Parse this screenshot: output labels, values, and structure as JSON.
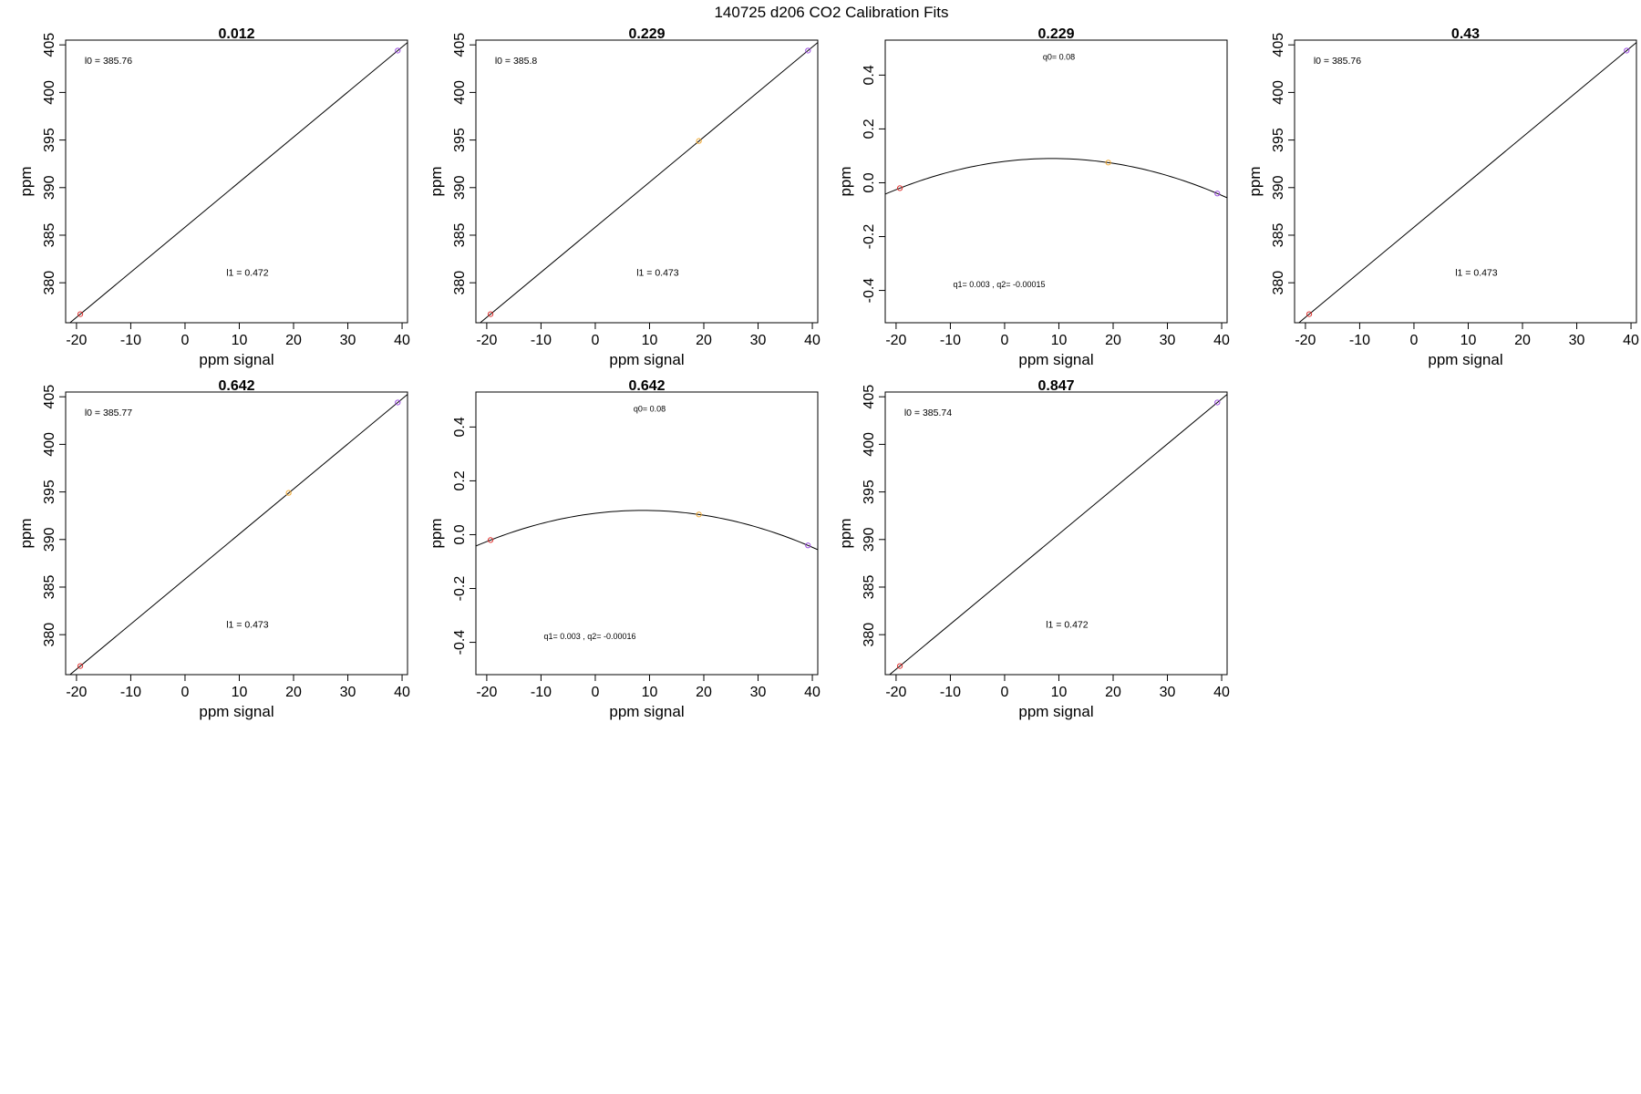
{
  "page": {
    "title": "140725   d206   CO2 Calibration Fits"
  },
  "colors": {
    "low": "#e0312f",
    "mid": "#f0a830",
    "high": "#9a4ae0",
    "line": "#000000"
  },
  "chart_data": [
    {
      "type": "scatter",
      "fit": "linear",
      "title": "0.012",
      "xlabel": "ppm signal",
      "ylabel": "ppm",
      "xlim": [
        -22,
        41
      ],
      "ylim": [
        375.8,
        405.5
      ],
      "xticks": [
        "-20",
        "-10",
        "0",
        "10",
        "20",
        "30",
        "40"
      ],
      "yticks": [
        "380",
        "385",
        "390",
        "395",
        "400",
        "405"
      ],
      "points": [
        {
          "x": -19.3,
          "y": 376.7,
          "color": "low"
        },
        {
          "x": 39.2,
          "y": 404.4,
          "color": "high"
        }
      ],
      "annotations": [
        {
          "text": "l0 =  385.76",
          "x": -18.5,
          "y": 403.4,
          "size": 10.5
        },
        {
          "text": "l1 =  0.472",
          "x": 11.5,
          "y": 381.1,
          "size": 10.5
        }
      ]
    },
    {
      "type": "scatter",
      "fit": "linear",
      "title": "0.229",
      "xlabel": "ppm signal",
      "ylabel": "ppm",
      "xlim": [
        -22,
        41
      ],
      "ylim": [
        375.8,
        405.5
      ],
      "xticks": [
        "-20",
        "-10",
        "0",
        "10",
        "20",
        "30",
        "40"
      ],
      "yticks": [
        "380",
        "385",
        "390",
        "395",
        "400",
        "405"
      ],
      "points": [
        {
          "x": -19.3,
          "y": 376.7,
          "color": "low"
        },
        {
          "x": 19.1,
          "y": 394.9,
          "color": "mid"
        },
        {
          "x": 39.2,
          "y": 404.4,
          "color": "high"
        }
      ],
      "annotations": [
        {
          "text": "l0 =  385.8",
          "x": -18.5,
          "y": 403.4,
          "size": 10.5
        },
        {
          "text": "l1 =  0.473",
          "x": 11.5,
          "y": 381.1,
          "size": 10.5
        }
      ]
    },
    {
      "type": "scatter",
      "fit": "quadratic",
      "title": "0.229",
      "xlabel": "ppm signal",
      "ylabel": "ppm",
      "xlim": [
        -22,
        41
      ],
      "ylim": [
        -0.52,
        0.53
      ],
      "xticks": [
        "-20",
        "-10",
        "0",
        "10",
        "20",
        "30",
        "40"
      ],
      "yticks": [
        "-0.4",
        "-0.2",
        "0.0",
        "0.2",
        "0.4"
      ],
      "points": [
        {
          "x": -19.3,
          "y": -0.02,
          "color": "low"
        },
        {
          "x": 19.1,
          "y": 0.075,
          "color": "mid"
        },
        {
          "x": 39.2,
          "y": -0.04,
          "color": "high"
        }
      ],
      "annotations": [
        {
          "text": "q0= 0.08",
          "x": 10,
          "y": 0.47,
          "size": 9
        },
        {
          "text": "q1= 0.003 , q2= -0.00015",
          "x": -1,
          "y": -0.375,
          "size": 9
        }
      ]
    },
    {
      "type": "scatter",
      "fit": "linear",
      "title": "0.43",
      "xlabel": "ppm signal",
      "ylabel": "ppm",
      "xlim": [
        -22,
        41
      ],
      "ylim": [
        375.8,
        405.5
      ],
      "xticks": [
        "-20",
        "-10",
        "0",
        "10",
        "20",
        "30",
        "40"
      ],
      "yticks": [
        "380",
        "385",
        "390",
        "395",
        "400",
        "405"
      ],
      "points": [
        {
          "x": -19.3,
          "y": 376.7,
          "color": "low"
        },
        {
          "x": 39.2,
          "y": 404.4,
          "color": "high"
        }
      ],
      "annotations": [
        {
          "text": "l0 =  385.76",
          "x": -18.5,
          "y": 403.4,
          "size": 10.5
        },
        {
          "text": "l1 =  0.473",
          "x": 11.5,
          "y": 381.1,
          "size": 10.5
        }
      ]
    },
    {
      "type": "scatter",
      "fit": "linear",
      "title": "0.642",
      "xlabel": "ppm signal",
      "ylabel": "ppm",
      "xlim": [
        -22,
        41
      ],
      "ylim": [
        375.8,
        405.5
      ],
      "xticks": [
        "-20",
        "-10",
        "0",
        "10",
        "20",
        "30",
        "40"
      ],
      "yticks": [
        "380",
        "385",
        "390",
        "395",
        "400",
        "405"
      ],
      "points": [
        {
          "x": -19.3,
          "y": 376.7,
          "color": "low"
        },
        {
          "x": 19.1,
          "y": 394.9,
          "color": "mid"
        },
        {
          "x": 39.2,
          "y": 404.4,
          "color": "high"
        }
      ],
      "annotations": [
        {
          "text": "l0 =  385.77",
          "x": -18.5,
          "y": 403.4,
          "size": 10.5
        },
        {
          "text": "l1 =  0.473",
          "x": 11.5,
          "y": 381.1,
          "size": 10.5
        }
      ]
    },
    {
      "type": "scatter",
      "fit": "quadratic",
      "title": "0.642",
      "xlabel": "ppm signal",
      "ylabel": "ppm",
      "xlim": [
        -22,
        41
      ],
      "ylim": [
        -0.52,
        0.53
      ],
      "xticks": [
        "-20",
        "-10",
        "0",
        "10",
        "20",
        "30",
        "40"
      ],
      "yticks": [
        "-0.4",
        "-0.2",
        "0.0",
        "0.2",
        "0.4"
      ],
      "points": [
        {
          "x": -19.3,
          "y": -0.02,
          "color": "low"
        },
        {
          "x": 19.1,
          "y": 0.075,
          "color": "mid"
        },
        {
          "x": 39.2,
          "y": -0.04,
          "color": "high"
        }
      ],
      "annotations": [
        {
          "text": "q0= 0.08",
          "x": 10,
          "y": 0.47,
          "size": 9
        },
        {
          "text": "q1= 0.003 , q2= -0.00016",
          "x": -1,
          "y": -0.375,
          "size": 9
        }
      ]
    },
    {
      "type": "scatter",
      "fit": "linear",
      "title": "0.847",
      "xlabel": "ppm signal",
      "ylabel": "ppm",
      "xlim": [
        -22,
        41
      ],
      "ylim": [
        375.8,
        405.5
      ],
      "xticks": [
        "-20",
        "-10",
        "0",
        "10",
        "20",
        "30",
        "40"
      ],
      "yticks": [
        "380",
        "385",
        "390",
        "395",
        "400",
        "405"
      ],
      "points": [
        {
          "x": -19.3,
          "y": 376.7,
          "color": "low"
        },
        {
          "x": 39.2,
          "y": 404.4,
          "color": "high"
        }
      ],
      "annotations": [
        {
          "text": "l0 =  385.74",
          "x": -18.5,
          "y": 403.4,
          "size": 10.5
        },
        {
          "text": "l1 =  0.472",
          "x": 11.5,
          "y": 381.1,
          "size": 10.5
        }
      ]
    }
  ]
}
